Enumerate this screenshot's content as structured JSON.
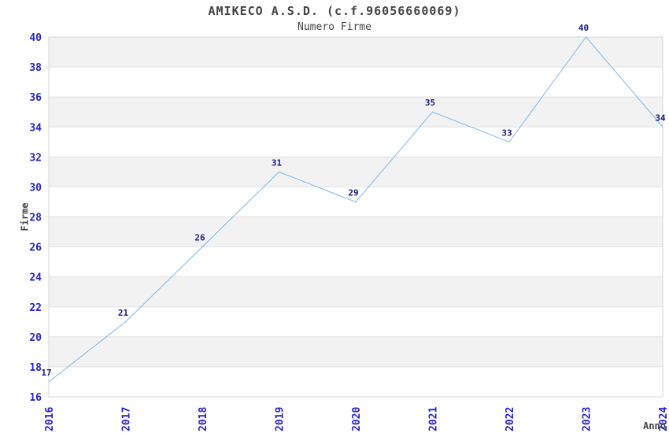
{
  "title": "AMIKECO A.S.D. (c.f.96056660069)",
  "subtitle": "Numero Firme",
  "chart_data": {
    "type": "line",
    "x": [
      2016,
      2017,
      2018,
      2019,
      2020,
      2021,
      2022,
      2023,
      2024
    ],
    "series": [
      {
        "name": "Numero Firme",
        "values": [
          17,
          21,
          26,
          31,
          29,
          35,
          33,
          40,
          34
        ]
      }
    ],
    "point_labels_visible": true,
    "title": "AMIKECO A.S.D. (c.f.96056660069)",
    "subtitle": "Numero Firme",
    "xlabel": "Anno",
    "ylabel": "Firme",
    "xlim": [
      2016,
      2024
    ],
    "ylim": [
      16,
      40
    ],
    "y_ticks": [
      16,
      18,
      20,
      22,
      24,
      26,
      28,
      30,
      32,
      34,
      36,
      38,
      40
    ],
    "x_ticks": [
      2016,
      2017,
      2018,
      2019,
      2020,
      2021,
      2022,
      2023,
      2024
    ],
    "legend": "none",
    "grid": "horizontal-bands-alternating",
    "colors": {
      "line": "#7eb6ea",
      "tick_label": "#2323cc",
      "data_label": "#1a1a80",
      "band": "#f2f2f2",
      "gridline": "#e2e2e2",
      "border": "#d4d4d4",
      "text": "#444444",
      "background": "#ffffff"
    }
  }
}
